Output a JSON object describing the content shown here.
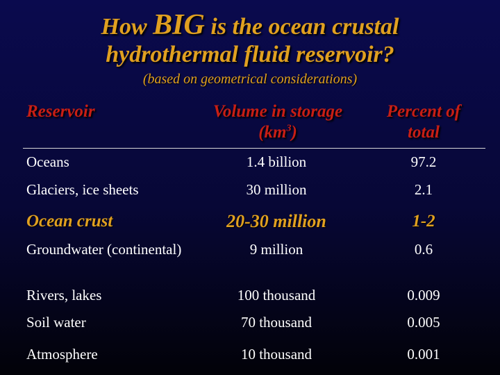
{
  "title": {
    "line1_pre": "How ",
    "line1_big": "BIG",
    "line1_post": " is the ocean crustal",
    "line2": "hydrothermal fluid reservoir?",
    "subtitle": "(based on geometrical considerations)"
  },
  "table": {
    "headers": {
      "reservoir": "Reservoir",
      "volume_line1": "Volume in storage",
      "volume_unit_pre": "(km",
      "volume_unit_sup": "3",
      "volume_unit_post": ")",
      "percent_line1": "Percent of",
      "percent_line2": "total"
    },
    "rows": [
      {
        "reservoir": "Oceans",
        "volume": "1.4 billion",
        "percent": "97.2"
      },
      {
        "reservoir": "Glaciers, ice sheets",
        "volume": "30 million",
        "percent": "2.1"
      },
      {
        "reservoir": "Ocean crust",
        "volume": "20-30 million",
        "percent": "1-2",
        "highlight": true
      },
      {
        "reservoir": "Groundwater (continental)",
        "volume": "9 million",
        "percent": "0.6"
      },
      {
        "reservoir": "Rivers, lakes",
        "volume": "100 thousand",
        "percent": "0.009"
      },
      {
        "reservoir": "Soil water",
        "volume": "70 thousand",
        "percent": "0.005"
      },
      {
        "reservoir": "Atmosphere",
        "volume": "10 thousand",
        "percent": "0.001"
      }
    ]
  },
  "colors": {
    "background": "#07073a",
    "title": "#e0a020",
    "header": "#c81e14",
    "body_text": "#ffffff"
  }
}
